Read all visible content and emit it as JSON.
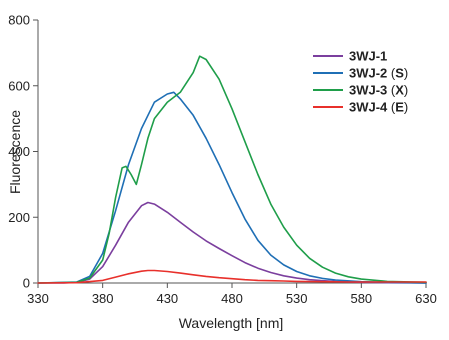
{
  "chart_data": {
    "type": "line",
    "title": "",
    "xlabel": "Wavelength [nm]",
    "ylabel": "Fluorescence",
    "xlim": [
      330,
      630
    ],
    "ylim": [
      0,
      800
    ],
    "xticks": [
      "330",
      "380",
      "430",
      "480",
      "530",
      "580",
      "630"
    ],
    "yticks": [
      "0",
      "200",
      "400",
      "600",
      "800"
    ],
    "grid": false,
    "legend_position": "top-right",
    "series": [
      {
        "name": "3WJ-1",
        "name_main": "3WJ-1",
        "name_paren": "",
        "color": "#7b3f9e",
        "x": [
          330,
          350,
          360,
          370,
          380,
          390,
          400,
          410,
          415,
          420,
          430,
          440,
          450,
          460,
          470,
          480,
          490,
          500,
          510,
          520,
          530,
          540,
          550,
          560,
          580,
          600,
          630
        ],
        "y": [
          0,
          0,
          2,
          12,
          50,
          115,
          185,
          235,
          245,
          240,
          215,
          185,
          155,
          128,
          105,
          83,
          62,
          45,
          32,
          22,
          15,
          10,
          7,
          5,
          2,
          1,
          0
        ]
      },
      {
        "name": "3WJ-2 (S)",
        "name_main": "3WJ-2",
        "name_paren": "S",
        "color": "#1f6fb5",
        "x": [
          330,
          360,
          370,
          380,
          390,
          400,
          410,
          420,
          430,
          435,
          440,
          450,
          460,
          470,
          480,
          490,
          500,
          510,
          520,
          530,
          540,
          550,
          560,
          580,
          600,
          630
        ],
        "y": [
          0,
          3,
          20,
          90,
          220,
          360,
          470,
          550,
          575,
          580,
          560,
          510,
          440,
          360,
          275,
          195,
          130,
          85,
          55,
          35,
          22,
          14,
          9,
          4,
          2,
          0
        ]
      },
      {
        "name": "3WJ-3 (X)",
        "name_main": "3WJ-3",
        "name_paren": "X",
        "color": "#1f9e4a",
        "x": [
          330,
          360,
          370,
          380,
          385,
          390,
          395,
          398,
          402,
          406,
          410,
          415,
          420,
          430,
          440,
          450,
          455,
          460,
          470,
          480,
          490,
          500,
          510,
          520,
          530,
          540,
          550,
          560,
          570,
          580,
          600,
          630
        ],
        "y": [
          0,
          2,
          15,
          70,
          150,
          260,
          350,
          355,
          330,
          300,
          360,
          440,
          500,
          550,
          580,
          640,
          690,
          680,
          620,
          530,
          430,
          330,
          240,
          170,
          115,
          75,
          48,
          30,
          19,
          12,
          5,
          2
        ]
      },
      {
        "name": "3WJ-4 (E)",
        "name_main": "3WJ-4",
        "name_paren": "E",
        "color": "#e8302b",
        "x": [
          330,
          360,
          380,
          390,
          400,
          410,
          415,
          420,
          430,
          440,
          450,
          460,
          470,
          480,
          490,
          500,
          510,
          520,
          530,
          550,
          570,
          600,
          630
        ],
        "y": [
          0,
          1,
          8,
          18,
          28,
          36,
          38,
          38,
          35,
          30,
          25,
          20,
          16,
          13,
          10,
          8,
          7,
          6,
          5,
          4,
          3,
          3,
          3
        ]
      }
    ]
  }
}
